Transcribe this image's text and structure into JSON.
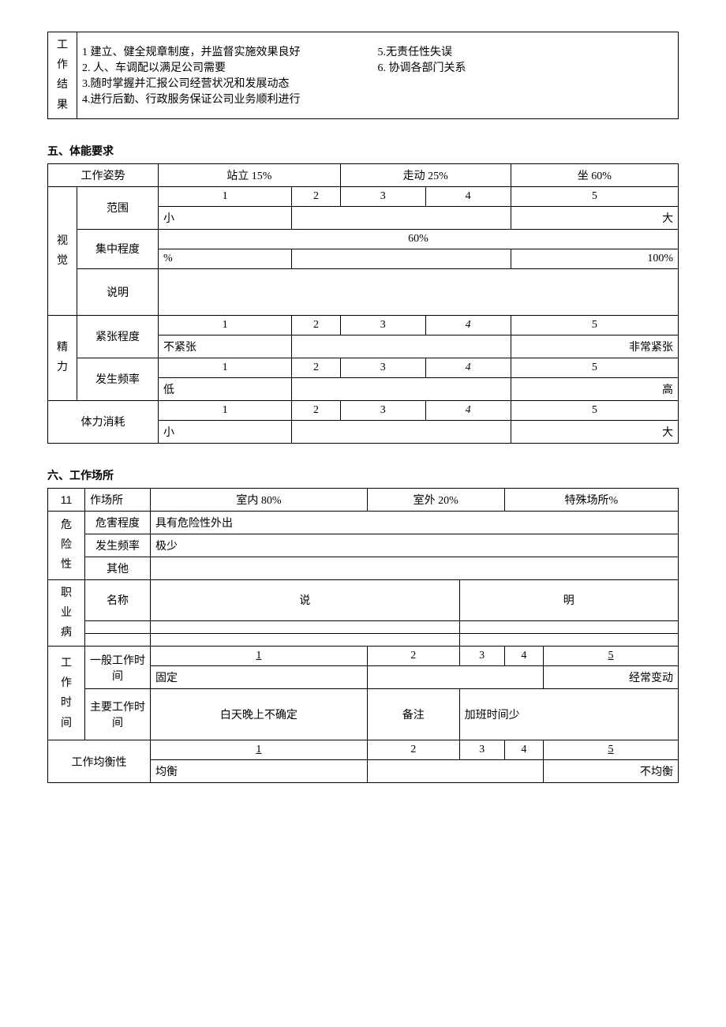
{
  "work_results": {
    "header": "工作结果",
    "left": [
      "1 建立、健全规章制度，并监督实施效果良好",
      "2. 人、车调配以满足公司需要",
      "3.随时掌握并汇报公司经营状况和发展动态",
      "4.进行后勤、行政服务保证公司业务顺利进行"
    ],
    "right": [
      "5.无责任性失误",
      "6. 协调各部门关系"
    ]
  },
  "section5": {
    "title": "五、体能要求",
    "posture": {
      "label": "工作姿势",
      "stand": "站立 15%",
      "walk": "走动 25%",
      "sit": "坐 60%"
    },
    "vision": {
      "group": "视觉",
      "range_label": "范围",
      "range_scale": [
        "1",
        "2",
        "3",
        "4",
        "5"
      ],
      "range_min": "小",
      "range_max": "大",
      "focus_label": "集中程度",
      "focus_60": "60%",
      "focus_pct": "%",
      "focus_100": "100%",
      "explain_label": "说明"
    },
    "mental": {
      "group": "精力",
      "tension_label": "紧张程度",
      "tension_scale": [
        "1",
        "2",
        "3",
        "4",
        "5"
      ],
      "tension_min": "不紧张",
      "tension_max": "非常紧张",
      "freq_label": "发生频率",
      "freq_scale": [
        "1",
        "2",
        "3",
        "4",
        "5"
      ],
      "freq_min": "低",
      "freq_max": "高"
    },
    "physical": {
      "label": "体力消耗",
      "scale": [
        "1",
        "2",
        "3",
        "4",
        "5"
      ],
      "min": "小",
      "max": "大"
    }
  },
  "section6": {
    "title": "六、工作场所",
    "num": "11",
    "place_label": "作场所",
    "places": {
      "indoor": "室内 80%",
      "outdoor": "室外 20%",
      "special": "特殊场所%"
    },
    "danger": {
      "group": "危险性",
      "degree_label": "危害程度",
      "degree_val": "具有危险性外出",
      "freq_label": "发生频率",
      "freq_val": "极少",
      "other_label": "其他"
    },
    "disease": {
      "group": "职业病",
      "name_label": "名称",
      "explain_label": "说明",
      "explain_spaced1": "说",
      "explain_spaced2": "明"
    },
    "worktime": {
      "group": "工作时间",
      "general_label": "一般工作时间",
      "general_scale": [
        "1",
        "2",
        "3",
        "4",
        "5"
      ],
      "general_min": "固定",
      "general_max": "经常变动",
      "main_label": "主要工作时间",
      "main_val": "白天晚上不确定",
      "remark_label": "备注",
      "remark_val": "加班时间少"
    },
    "balance": {
      "label": "工作均衡性",
      "scale": [
        "1",
        "2",
        "3",
        "4",
        "5"
      ],
      "min": "均衡",
      "max": "不均衡"
    }
  }
}
